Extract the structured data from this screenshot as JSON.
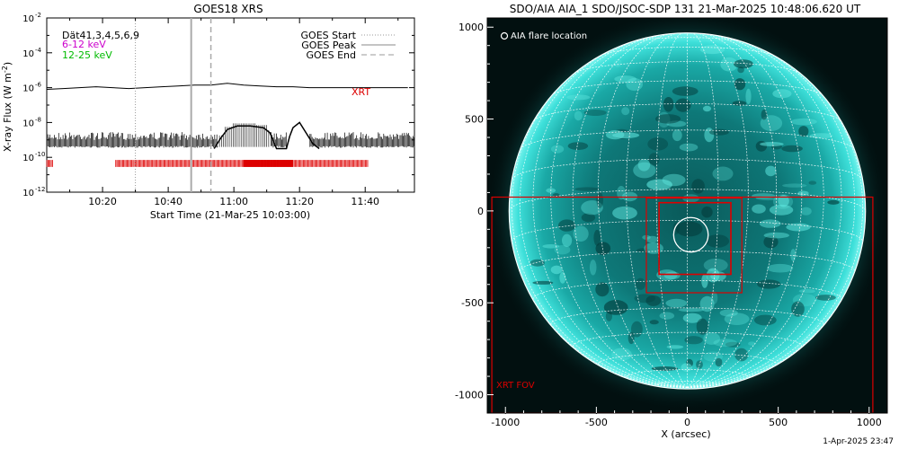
{
  "left_panel": {
    "title": "GOES18 XRS",
    "ylabel_main": "X-ray Flux (W m",
    "ylabel_exp": "-2",
    "ylabel_tail": ")",
    "xlabel": "Start Time (21-Mar-25 10:03:00)",
    "legend_left": [
      {
        "text": "Dät41,3,4,5,6,9",
        "color": "#000000"
      },
      {
        "text": "6-12 keV",
        "color": "#cc00cc"
      },
      {
        "text": "12-25 keV",
        "color": "#00cc00"
      }
    ],
    "legend_right": [
      {
        "text": "GOES Start",
        "style": "dotted"
      },
      {
        "text": "GOES Peak",
        "style": "solid"
      },
      {
        "text": "GOES End",
        "style": "dashed"
      }
    ],
    "xrt_label": "XRT",
    "colors": {
      "xrt": "#dd0000",
      "markers": "#aaaaaa",
      "curve": "#000000"
    }
  },
  "right_panel": {
    "title": "SDO/AIA AIA_1 SDO/JSOC-SDP 131 21-Mar-2025 10:48:06.620 UT",
    "legend": "AIA flare location",
    "fov_label": "XRT FOV",
    "xlabel": "X (arcsec)",
    "colors": {
      "box": "#dd0000",
      "sun": "#2fd0c8",
      "circle": "#ffffff"
    }
  },
  "footer": {
    "timestamp": "1-Apr-2025 23:47"
  },
  "chart_data": [
    {
      "type": "line",
      "title": "GOES18 XRS",
      "xlabel": "Start Time (21-Mar-25 10:03:00)",
      "ylabel": "X-ray Flux (W m^-2)",
      "yscale": "log",
      "ylim": [
        1e-12,
        0.01
      ],
      "xlim_min": [
        0,
        112
      ],
      "x_ticks": [
        {
          "t": 17,
          "label": "10:20"
        },
        {
          "t": 37,
          "label": "10:40"
        },
        {
          "t": 57,
          "label": "11:00"
        },
        {
          "t": 77,
          "label": "11:20"
        },
        {
          "t": 97,
          "label": "11:40"
        }
      ],
      "y_ticks": [
        {
          "exp": -2,
          "label": "10"
        },
        {
          "exp": -4,
          "label": "10"
        },
        {
          "exp": -6,
          "label": "10"
        },
        {
          "exp": -8,
          "label": "10"
        },
        {
          "exp": -10,
          "label": "10"
        },
        {
          "exp": -12,
          "label": "10"
        }
      ],
      "series": [
        {
          "name": "6-12 keV",
          "points": [
            [
              0,
              -6.1
            ],
            [
              5,
              -6.05
            ],
            [
              10,
              -6.0
            ],
            [
              15,
              -5.95
            ],
            [
              20,
              -6.0
            ],
            [
              25,
              -6.05
            ],
            [
              30,
              -6.0
            ],
            [
              35,
              -5.95
            ],
            [
              40,
              -5.9
            ],
            [
              45,
              -5.85
            ],
            [
              50,
              -5.85
            ],
            [
              55,
              -5.75
            ],
            [
              60,
              -5.85
            ],
            [
              65,
              -5.9
            ],
            [
              70,
              -5.95
            ],
            [
              75,
              -5.95
            ],
            [
              80,
              -6.0
            ],
            [
              85,
              -6.0
            ],
            [
              90,
              -6.0
            ],
            [
              95,
              -6.0
            ],
            [
              100,
              -6.0
            ],
            [
              105,
              -6.0
            ],
            [
              110,
              -6.0
            ]
          ]
        },
        {
          "name": "12-25 keV",
          "points": [
            [
              51,
              -9.5
            ],
            [
              53,
              -8.9
            ],
            [
              55,
              -8.4
            ],
            [
              58,
              -8.2
            ],
            [
              62,
              -8.2
            ],
            [
              66,
              -8.3
            ],
            [
              68,
              -8.6
            ],
            [
              70,
              -9.5
            ],
            [
              73,
              -9.5
            ],
            [
              74,
              -8.8
            ],
            [
              75,
              -8.3
            ],
            [
              77,
              -8.0
            ],
            [
              79,
              -8.6
            ],
            [
              81,
              -9.2
            ],
            [
              83,
              -9.5
            ]
          ]
        }
      ],
      "markers": {
        "goes_start_min": 27,
        "goes_peak_min": 44,
        "goes_end_min": 50
      },
      "xrt_ranges_min": [
        [
          0,
          2
        ],
        [
          21,
          60
        ],
        [
          60,
          75
        ],
        [
          75,
          98
        ]
      ]
    },
    {
      "type": "scatter",
      "title": "SDO/AIA AIA_1 SDO/JSOC-SDP 131 21-Mar-2025 10:48:06.620 UT",
      "xlabel": "X (arcsec)",
      "xlim": [
        -1100,
        1100
      ],
      "ylim": [
        -1100,
        1050
      ],
      "x_ticks": [
        -1000,
        -500,
        0,
        500,
        1000
      ],
      "y_ticks": [
        1000,
        500,
        0,
        -500,
        -1000
      ],
      "solar_radius_arcsec": 980,
      "flare_location": {
        "x": 20,
        "y": -130,
        "radius": 95
      },
      "boxes_arcsec": [
        {
          "x0": -1075,
          "y0": -1100,
          "x1": 1020,
          "y1": 75,
          "label": "XRT FOV"
        },
        {
          "x0": -225,
          "y0": -445,
          "x1": 300,
          "y1": 70
        },
        {
          "x0": -155,
          "y0": -345,
          "x1": 240,
          "y1": 45
        }
      ]
    }
  ]
}
